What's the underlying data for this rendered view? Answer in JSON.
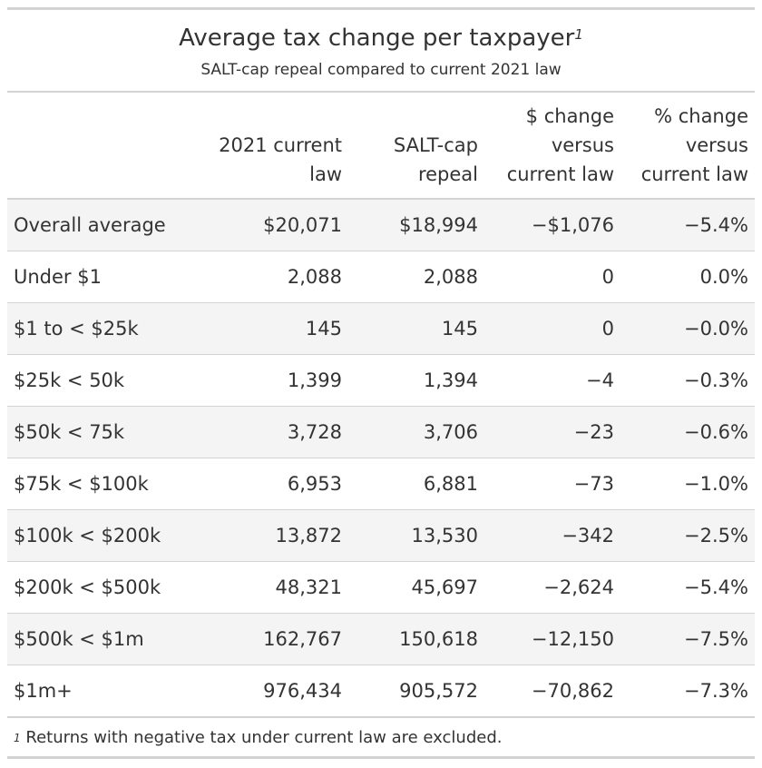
{
  "chart_data": {
    "type": "table",
    "title": "Average tax change per taxpayer",
    "title_footnote_mark": "1",
    "subtitle": "SALT-cap repeal compared to current 2021 law",
    "columns": [
      "",
      "2021 current law",
      "SALT-cap repeal",
      "$ change versus current law",
      "% change versus current law"
    ],
    "rows": [
      [
        "Overall average",
        "$20,071",
        "$18,994",
        "−$1,076",
        "−5.4%"
      ],
      [
        "Under $1",
        "2,088",
        "2,088",
        "0",
        "0.0%"
      ],
      [
        "$1 to < $25k",
        "145",
        "145",
        "0",
        "−0.0%"
      ],
      [
        "$25k < 50k",
        "1,399",
        "1,394",
        "−4",
        "−0.3%"
      ],
      [
        "$50k < 75k",
        "3,728",
        "3,706",
        "−23",
        "−0.6%"
      ],
      [
        "$75k < $100k",
        "6,953",
        "6,881",
        "−73",
        "−1.0%"
      ],
      [
        "$100k < $200k",
        "13,872",
        "13,530",
        "−342",
        "−2.5%"
      ],
      [
        "$200k < $500k",
        "48,321",
        "45,697",
        "−2,624",
        "−5.4%"
      ],
      [
        "$500k < $1m",
        "162,767",
        "150,618",
        "−12,150",
        "−7.5%"
      ],
      [
        "$1m+",
        "976,434",
        "905,572",
        "−70,862",
        "−7.3%"
      ]
    ],
    "footnote_mark": "1",
    "footnote": "Returns with negative tax under current law are excluded."
  }
}
